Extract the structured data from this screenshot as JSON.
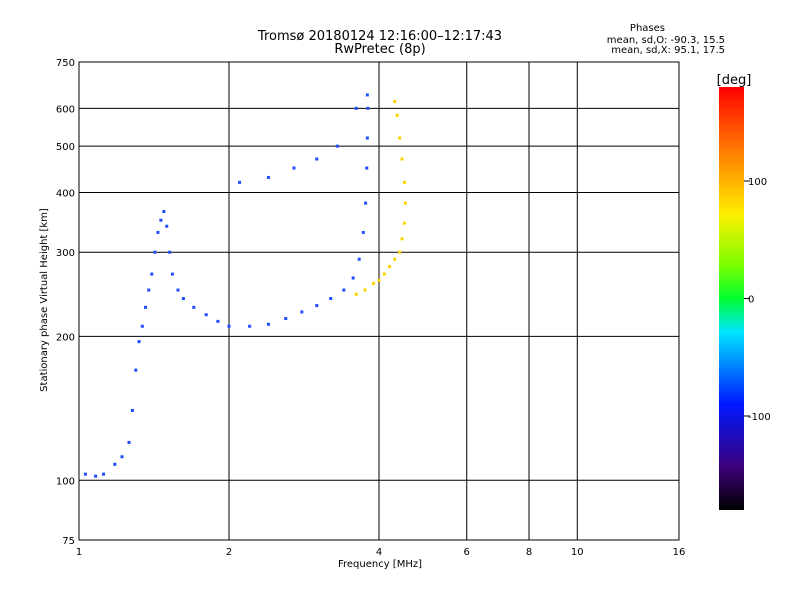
{
  "chart_data": {
    "type": "scatter",
    "title": "Tromsø 20180124 12:16:00–12:17:43",
    "subtitle": "RwPretec (8p)",
    "xlabel": "Frequency [MHz]",
    "ylabel": "Stationary phase Virtual Height [km]",
    "x_scale": "log",
    "y_scale": "log",
    "xlim": [
      1,
      16
    ],
    "ylim": [
      75,
      750
    ],
    "x_ticks": [
      "1",
      "2",
      "4",
      "6",
      "8",
      "10",
      "16"
    ],
    "y_ticks": [
      "750",
      "600",
      "500",
      "400",
      "300",
      "200",
      "100",
      "75"
    ],
    "grid": true,
    "legend": {
      "heading": "Phases",
      "line1": "mean, sd,O: -90.3, 15.5",
      "line2": "mean, sd,X:  95.1, 17.5"
    },
    "colorbar": {
      "label": "[deg]",
      "range": [
        -180,
        180
      ],
      "ticks": [
        "100",
        "0",
        "-100"
      ]
    },
    "series": [
      {
        "name": "O",
        "mean_phase_deg": -90.3,
        "color": "#1e4cff",
        "points": [
          [
            1.03,
            103
          ],
          [
            1.08,
            102
          ],
          [
            1.12,
            103
          ],
          [
            1.18,
            108
          ],
          [
            1.22,
            112
          ],
          [
            1.26,
            120
          ],
          [
            1.28,
            140
          ],
          [
            1.3,
            170
          ],
          [
            1.32,
            195
          ],
          [
            1.34,
            210
          ],
          [
            1.36,
            230
          ],
          [
            1.38,
            250
          ],
          [
            1.4,
            270
          ],
          [
            1.42,
            300
          ],
          [
            1.44,
            330
          ],
          [
            1.46,
            350
          ],
          [
            1.48,
            365
          ],
          [
            1.5,
            340
          ],
          [
            1.52,
            300
          ],
          [
            1.54,
            270
          ],
          [
            1.58,
            250
          ],
          [
            1.62,
            240
          ],
          [
            1.7,
            230
          ],
          [
            1.8,
            222
          ],
          [
            1.9,
            215
          ],
          [
            2.0,
            210
          ],
          [
            2.2,
            210
          ],
          [
            2.4,
            212
          ],
          [
            2.6,
            218
          ],
          [
            2.8,
            225
          ],
          [
            3.0,
            232
          ],
          [
            3.2,
            240
          ],
          [
            3.4,
            250
          ],
          [
            3.55,
            265
          ],
          [
            3.65,
            290
          ],
          [
            3.72,
            330
          ],
          [
            3.76,
            380
          ],
          [
            3.78,
            450
          ],
          [
            3.79,
            520
          ],
          [
            3.8,
            600
          ],
          [
            3.79,
            640
          ],
          [
            3.6,
            600
          ],
          [
            3.3,
            500
          ],
          [
            3.0,
            470
          ],
          [
            2.7,
            450
          ],
          [
            2.4,
            430
          ],
          [
            2.1,
            420
          ]
        ]
      },
      {
        "name": "X",
        "mean_phase_deg": 95.1,
        "color": "#ffd400",
        "points": [
          [
            3.6,
            245
          ],
          [
            3.75,
            250
          ],
          [
            3.9,
            258
          ],
          [
            4.0,
            262
          ],
          [
            4.1,
            270
          ],
          [
            4.2,
            280
          ],
          [
            4.3,
            290
          ],
          [
            4.4,
            300
          ],
          [
            4.45,
            320
          ],
          [
            4.5,
            345
          ],
          [
            4.52,
            380
          ],
          [
            4.5,
            420
          ],
          [
            4.45,
            470
          ],
          [
            4.4,
            520
          ],
          [
            4.35,
            580
          ],
          [
            4.3,
            620
          ]
        ]
      }
    ]
  }
}
